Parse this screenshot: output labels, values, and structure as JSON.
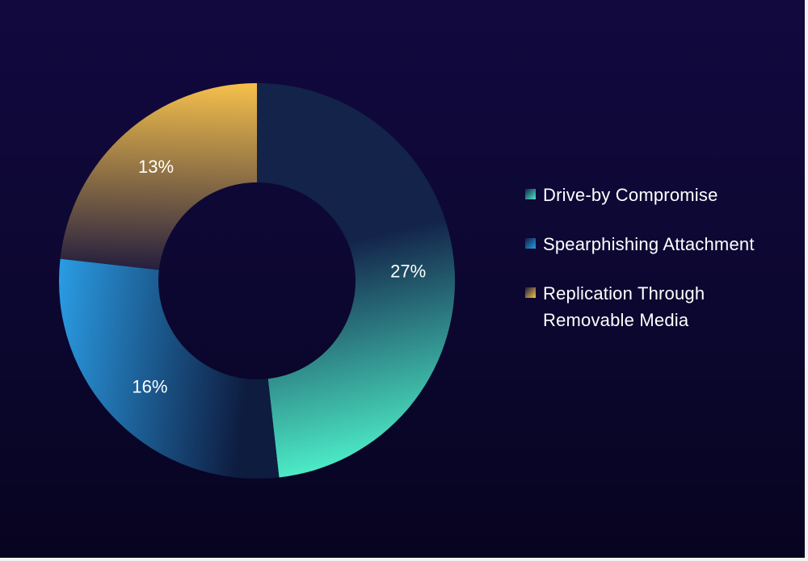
{
  "chart_data": {
    "type": "pie",
    "style": "donut",
    "title": "",
    "legend_position": "right",
    "labels": [
      "Drive-by Compromise",
      "Spearphishing Attachment",
      "Replication Through Removable Media"
    ],
    "values": [
      27,
      16,
      13
    ],
    "value_labels": [
      "27%",
      "16%",
      "13%"
    ],
    "colors": [
      "#4cebc6",
      "#2a9be2",
      "#f5c04b"
    ],
    "colors_dark": [
      "#13234a",
      "#0e1c40",
      "#1f1a3e"
    ],
    "start_angle_deg": 0,
    "direction": "clockwise"
  }
}
